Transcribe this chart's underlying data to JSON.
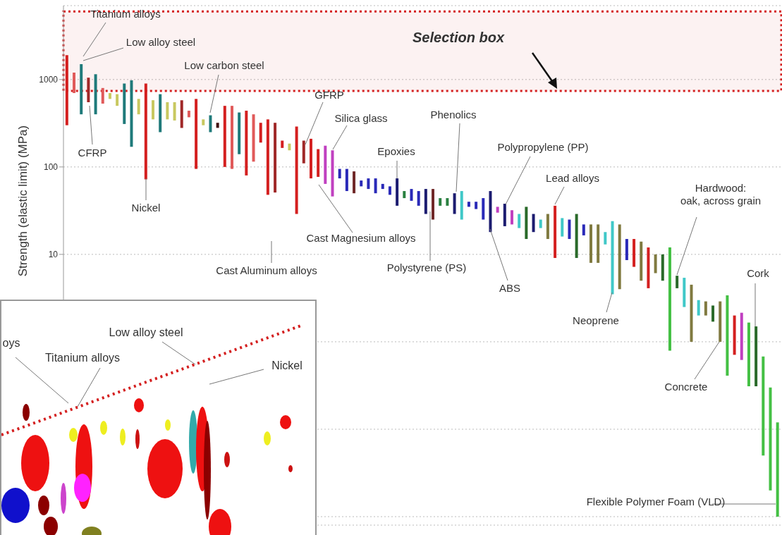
{
  "chart_data": [
    {
      "type": "bar",
      "ylabel": "Strength (elastic limit) (MPa)",
      "categories": [
        null,
        null,
        null,
        null,
        null,
        null,
        null,
        null,
        null,
        null,
        null,
        null,
        null,
        null,
        null,
        null,
        null,
        null,
        null,
        null,
        null,
        null,
        null,
        null,
        null,
        null,
        null,
        null,
        null,
        null,
        null,
        null,
        null,
        null,
        null,
        null,
        null,
        null,
        null,
        null,
        null,
        null,
        null,
        null,
        null,
        null,
        null,
        null,
        null,
        null,
        null,
        null,
        null,
        null,
        null,
        null,
        null,
        null,
        null,
        null,
        null,
        null,
        null,
        null,
        null,
        null,
        null,
        null,
        null,
        null,
        null,
        null,
        null,
        null,
        null,
        null,
        null,
        null,
        null,
        null,
        null,
        null,
        null,
        null,
        null,
        null,
        null,
        null,
        null,
        null,
        null,
        null,
        null,
        null,
        null,
        null,
        null,
        null,
        null,
        null
      ],
      "base": [
        300,
        700,
        400,
        550,
        400,
        530,
        600,
        500,
        310,
        170,
        400,
        72,
        350,
        250,
        350,
        340,
        280,
        370,
        95,
        300,
        250,
        280,
        100,
        95,
        140,
        80,
        115,
        190,
        48,
        51,
        165,
        155,
        29,
        110,
        74,
        77,
        64,
        46,
        74,
        53,
        50,
        60,
        56,
        50,
        56,
        48,
        36,
        44,
        41,
        36,
        29,
        25,
        36,
        36,
        29,
        25,
        35,
        33,
        25,
        18,
        30,
        21,
        22,
        20,
        15,
        18,
        20,
        15,
        9.1,
        16,
        15,
        9.1,
        16.5,
        8,
        8,
        13,
        3.5,
        4,
        8.6,
        7.2,
        5,
        4.1,
        6.1,
        5,
        0.79,
        4.1,
        2.5,
        1,
        2,
        2,
        1.7,
        1,
        0.41,
        0.71,
        0.62,
        0.31,
        0.31,
        0.05,
        0.02,
        0.01
      ],
      "values": [
        1600,
        500,
        1100,
        500,
        750,
        270,
        100,
        180,
        590,
        810,
        200,
        828,
        230,
        430,
        200,
        210,
        300,
        70,
        505,
        50,
        140,
        40,
        400,
        405,
        280,
        360,
        285,
        130,
        302,
        269,
        35,
        30,
        261,
        90,
        136,
        83,
        111,
        109,
        21,
        42,
        39,
        10,
        18,
        24,
        8,
        12,
        38,
        9,
        15,
        17,
        27,
        31,
        8,
        8,
        21,
        28,
        5,
        7,
        19,
        35,
        5,
        17,
        10,
        9,
        20,
        11,
        5,
        14,
        26.9,
        10,
        10,
        19.9,
        5.5,
        14,
        14,
        5,
        20.5,
        18,
        6.4,
        7.8,
        9,
        7.9,
        3.9,
        5,
        11.21,
        1.6,
        2.9,
        3.5,
        1,
        0.9,
        0.9,
        1.9,
        2.99,
        1.29,
        1.53,
        1.35,
        1.19,
        0.63,
        0.28,
        0.11
      ],
      "colors": [
        "#d42020",
        "#e05a5a",
        "#1f7a7a",
        "#a02828",
        "#1f7a7a",
        "#e05a5a",
        "#c8c860",
        "#c8c860",
        "#1f7a7a",
        "#1f7a7a",
        "#c8c860",
        "#d42020",
        "#c8c860",
        "#1f7a7a",
        "#c8c860",
        "#c8c860",
        "#a02828",
        "#e05a5a",
        "#d42020",
        "#c8c860",
        "#1f7a7a",
        "#401010",
        "#d42020",
        "#e05a5a",
        "#1f7a7a",
        "#d42020",
        "#e05a5a",
        "#d42020",
        "#d42020",
        "#a02828",
        "#d42020",
        "#c8c860",
        "#d42020",
        "#a02828",
        "#d42020",
        "#d42020",
        "#c040c0",
        "#c040c0",
        "#2a2ab8",
        "#2a2ab8",
        "#702828",
        "#2a2ab8",
        "#2a2ab8",
        "#2a2ab8",
        "#2a2ab8",
        "#2a2ab8",
        "#1c1c70",
        "#2a8040",
        "#2a2ab8",
        "#2a2ab8",
        "#1c1c70",
        "#702828",
        "#2a8040",
        "#2a8040",
        "#1c1c70",
        "#40c8c8",
        "#2a2ab8",
        "#2a2ab8",
        "#2a2ab8",
        "#1c1c70",
        "#c040c0",
        "#1c1c70",
        "#c040c0",
        "#40c8c8",
        "#2a6a2a",
        "#1c1c70",
        "#40c8c8",
        "#807a40",
        "#d42020",
        "#40c8c8",
        "#2a2ab8",
        "#2a6a2a",
        "#2a2ab8",
        "#807a40",
        "#807a40",
        "#40c8c8",
        "#40c8c8",
        "#807a40",
        "#2a2ab8",
        "#d42020",
        "#807a40",
        "#d42020",
        "#807a40",
        "#2a6a2a",
        "#44c044",
        "#2a6a2a",
        "#40c8c8",
        "#807a40",
        "#40c8c8",
        "#807a40",
        "#2a6a2a",
        "#807a40",
        "#44c044",
        "#d42020",
        "#c040c0",
        "#44c044",
        "#2a6a2a",
        "#44c044",
        "#44c044",
        "#44c044"
      ],
      "log": true,
      "ylim": [
        0.008,
        7000
      ],
      "yticks": [
        {
          "value": 0.01,
          "label": null
        },
        {
          "value": 0.1,
          "label": null
        },
        {
          "value": 1,
          "label": null
        },
        10,
        100,
        1000
      ],
      "grid": "y",
      "tick_labels": "y",
      "bands": [
        {
          "axis": "y",
          "from": 740,
          "to": 6000,
          "label": "Selection box",
          "color": "#d42020"
        }
      ],
      "annotations": [
        "Titanium alloys",
        "Low alloy steel",
        "CFRP",
        "Low carbon steel",
        "Nickel",
        "GFRP",
        "Silica glass",
        "Epoxies",
        "Phenolics",
        "Polypropylene (PP)",
        "Lead alloys",
        "Hardwood:\noak, across grain",
        "Cast Magnesium alloys",
        "Cast Aluminum alloys",
        "Polystyrene (PS)",
        "ABS",
        "Neoprene",
        "Concrete",
        "Cork",
        "Flexible Polymer Foam (VLD)"
      ]
    },
    {
      "type": "other",
      "annotations": [
        "oys",
        "Titanium alloys",
        "Low alloy steel",
        "Nickel"
      ]
    }
  ]
}
